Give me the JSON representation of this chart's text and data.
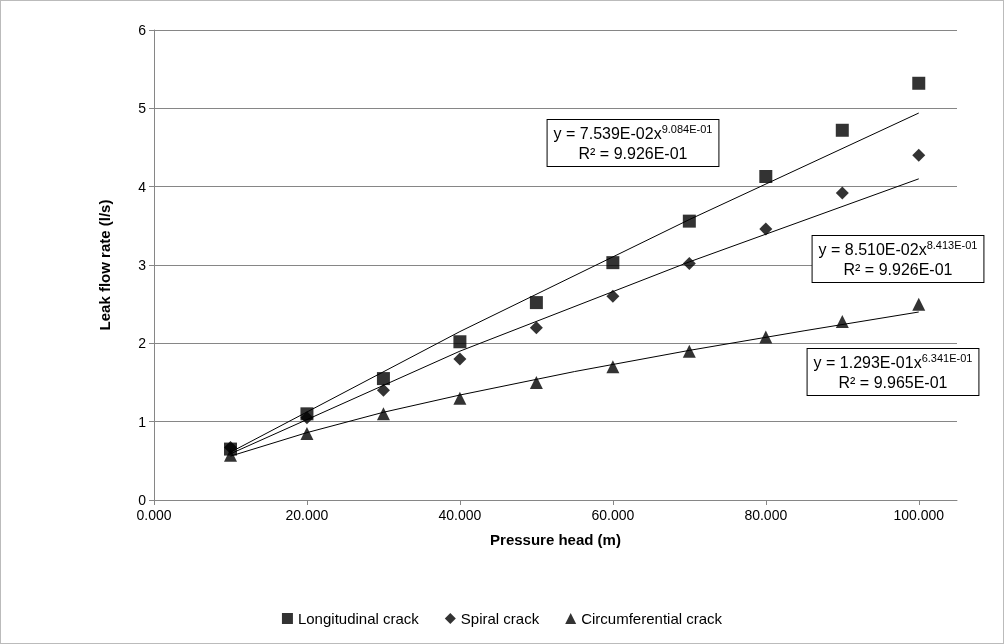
{
  "chart_data": {
    "type": "scatter",
    "xlabel": "Pressure head (m)",
    "ylabel": "Leak flow rate (l/s)",
    "xlim": [
      0,
      105
    ],
    "xticks": [
      {
        "value": 0,
        "label": "0.000"
      },
      {
        "value": 20,
        "label": "20.000"
      },
      {
        "value": 40,
        "label": "40.000"
      },
      {
        "value": 60,
        "label": "60.000"
      },
      {
        "value": 80,
        "label": "80.000"
      },
      {
        "value": 100,
        "label": "100.000"
      }
    ],
    "ylim": [
      0,
      6
    ],
    "yticks": [
      0,
      1,
      2,
      3,
      4,
      5,
      6
    ],
    "grid": "y",
    "legend": "bottom",
    "series": [
      {
        "name": "Longitudinal crack",
        "color": "#000000",
        "marker": "square",
        "x": [
          10,
          20,
          30,
          40,
          50,
          60,
          70,
          80,
          90,
          100
        ],
        "values": [
          0.65,
          1.1,
          1.55,
          2.02,
          2.52,
          3.03,
          3.56,
          4.13,
          4.72,
          5.32
        ]
      },
      {
        "name": "Spiral crack",
        "color": "#000000",
        "marker": "diamond",
        "x": [
          10,
          20,
          30,
          40,
          50,
          60,
          70,
          80,
          90,
          100
        ],
        "values": [
          0.67,
          1.05,
          1.4,
          1.8,
          2.2,
          2.6,
          3.02,
          3.46,
          3.92,
          4.4
        ]
      },
      {
        "name": "Circumferential crack",
        "color": "#000000",
        "marker": "triangle",
        "x": [
          10,
          20,
          30,
          40,
          50,
          60,
          70,
          80,
          90,
          100
        ],
        "values": [
          0.57,
          0.85,
          1.1,
          1.3,
          1.5,
          1.7,
          1.9,
          2.08,
          2.28,
          2.5
        ]
      },
      {
        "type": "line",
        "color": "#000000",
        "marker": "none",
        "x": [
          10,
          40,
          70,
          100
        ],
        "values": [
          0.61,
          2.15,
          3.58,
          4.94
        ]
      },
      {
        "type": "line",
        "color": "#000000",
        "marker": "none",
        "x": [
          10,
          40,
          70,
          100
        ],
        "values": [
          0.59,
          1.9,
          3.04,
          4.1
        ]
      },
      {
        "type": "line",
        "color": "#000000",
        "marker": "none",
        "x": [
          10,
          20,
          30,
          40,
          55,
          70,
          85,
          100
        ],
        "values": [
          0.56,
          0.86,
          1.12,
          1.34,
          1.64,
          1.91,
          2.16,
          2.4
        ]
      }
    ],
    "annotations": [
      "y = 7.539E-02x$^{9.084E-01}$\nR² = 9.926E-01",
      "y = 8.510E-02x$^{8.413E-01}$\nR² = 9.926E-01",
      "y = 1.293E-01x$^{6.341E-01}$\nR² = 9.965E-01"
    ]
  }
}
